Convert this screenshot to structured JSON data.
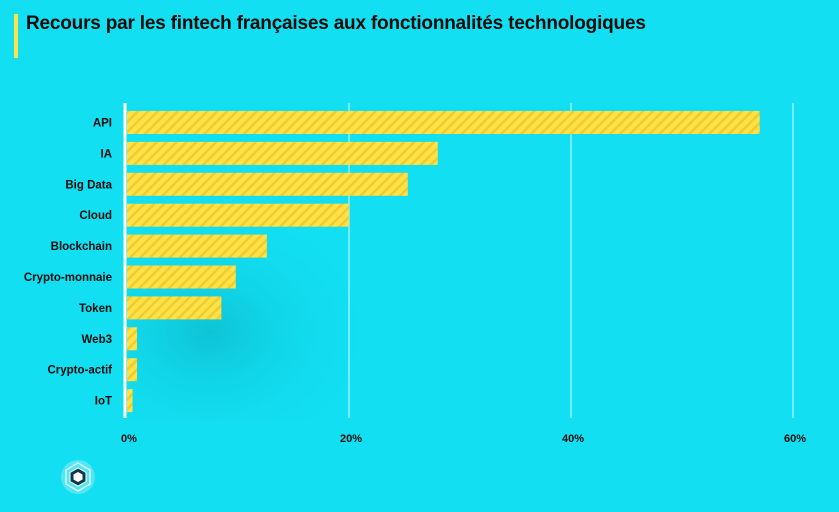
{
  "header": {
    "title": "Recours par les fintech françaises aux fonctionnalités technologiques"
  },
  "colors": {
    "background": "#12dff2",
    "bar": "#ffe14a",
    "bar_stripe": "#f2cc2a",
    "grid": "#ffffff",
    "text": "#0b0b0b"
  },
  "logo": {
    "icon": "hexagon-logo-icon"
  },
  "chart_data": {
    "type": "bar",
    "orientation": "horizontal",
    "title": "Recours par les fintech françaises aux fonctionnalités technologiques",
    "categories": [
      "API",
      "IA",
      "Big Data",
      "Cloud",
      "Blockchain",
      "Crypto-monnaie",
      "Token",
      "Web3",
      "Crypto-actif",
      "IoT"
    ],
    "values": [
      57,
      28,
      25.3,
      20,
      12.6,
      9.8,
      8.5,
      0.9,
      0.9,
      0.5
    ],
    "xlim": [
      0,
      60
    ],
    "xticks": [
      "0%",
      "20%",
      "40%",
      "60%"
    ],
    "xtick_values": [
      0,
      20,
      40,
      60
    ],
    "grid": true,
    "legend": "none"
  }
}
